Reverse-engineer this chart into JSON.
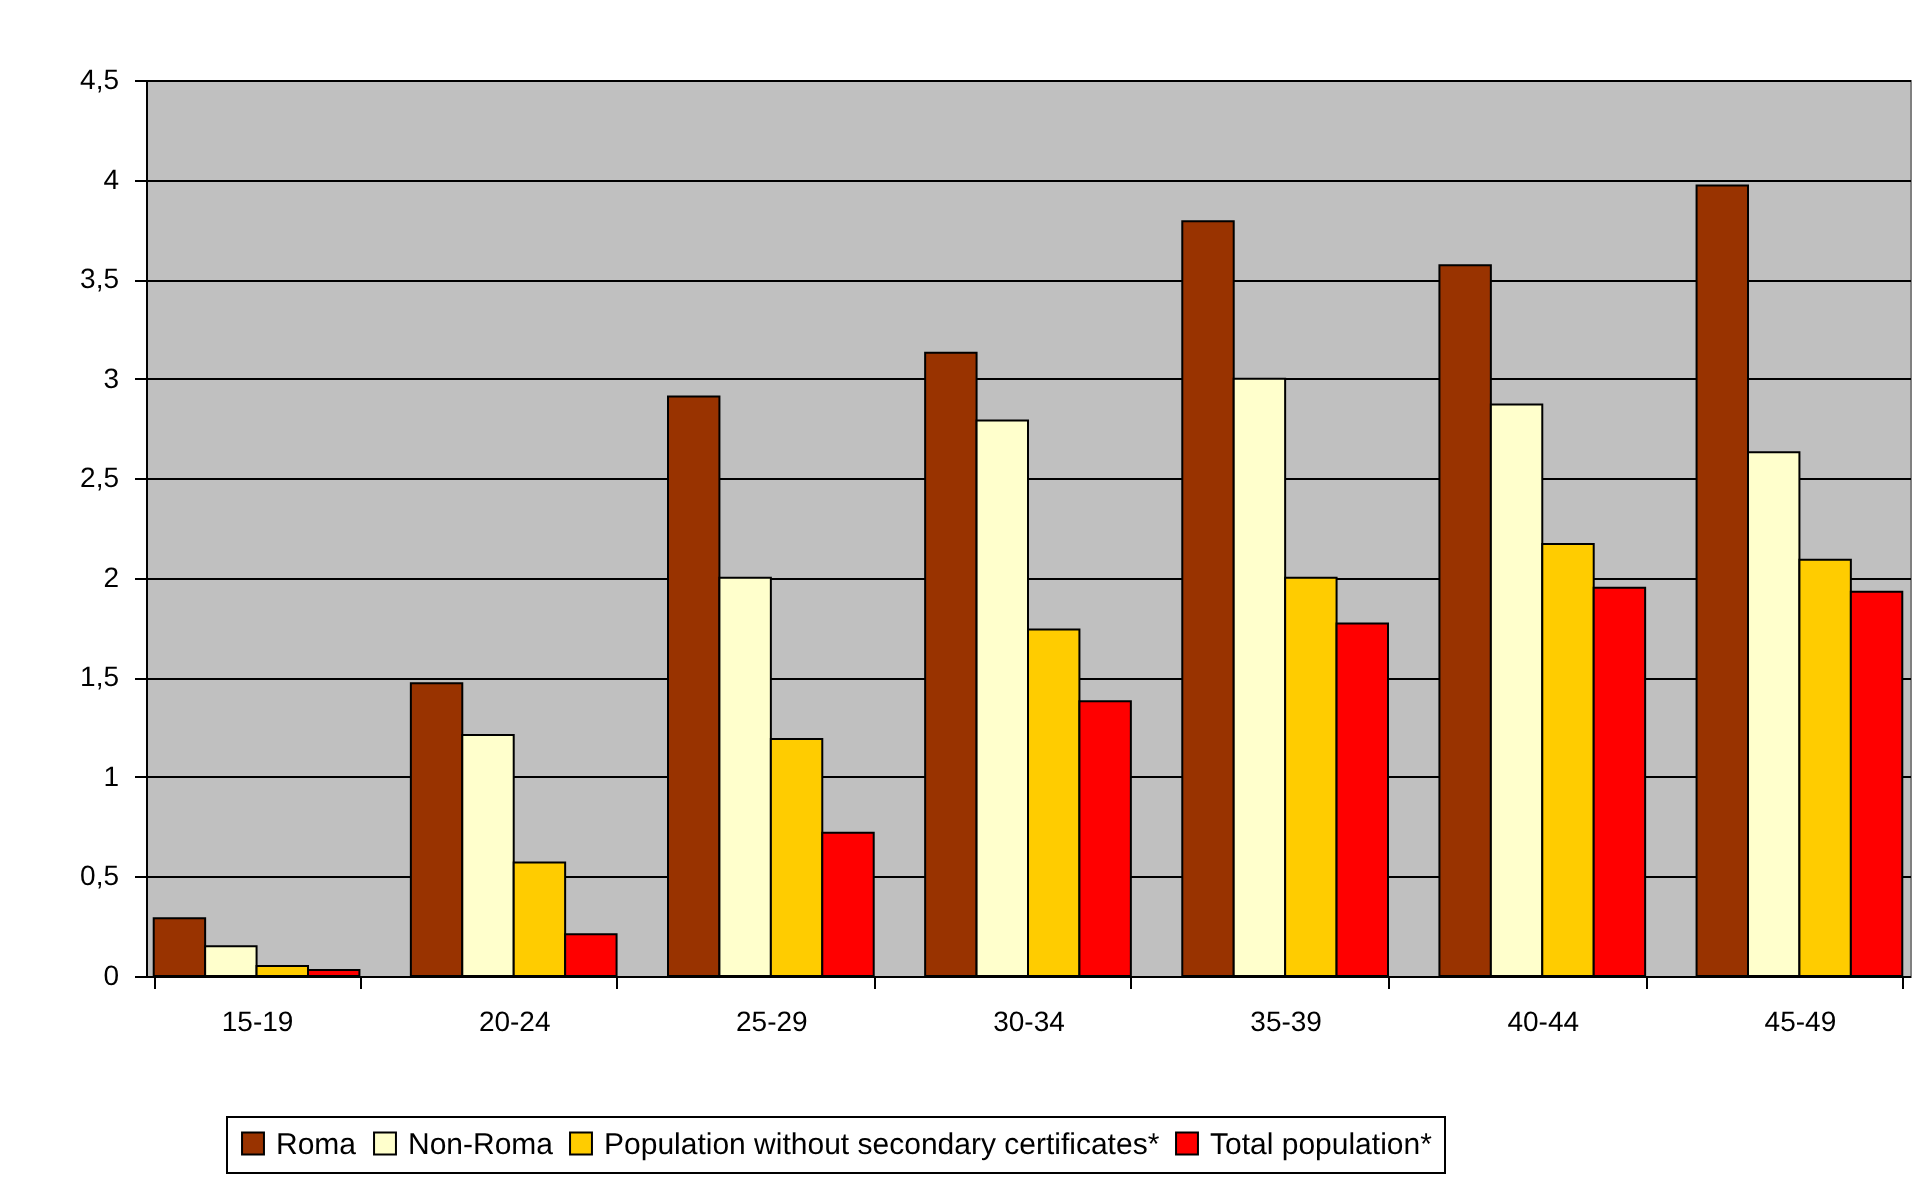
{
  "chart_data": {
    "type": "bar",
    "categories": [
      "15-19",
      "20-24",
      "25-29",
      "30-34",
      "35-39",
      "40-44",
      "45-49"
    ],
    "series": [
      {
        "name": "Roma",
        "color": "#993300",
        "values": [
          0.29,
          1.47,
          2.91,
          3.13,
          3.79,
          3.57,
          3.97
        ]
      },
      {
        "name": "Non-Roma",
        "color": "#ffffcc",
        "values": [
          0.15,
          1.21,
          2.0,
          2.79,
          3.0,
          2.87,
          2.63
        ]
      },
      {
        "name": "Population without secondary certificates*",
        "color": "#ffcc00",
        "values": [
          0.05,
          0.57,
          1.19,
          1.74,
          2.0,
          2.17,
          2.09
        ]
      },
      {
        "name": "Total population*",
        "color": "#ff0000",
        "values": [
          0.03,
          0.21,
          0.72,
          1.38,
          1.77,
          1.95,
          1.93
        ]
      }
    ],
    "ylim": [
      0,
      4.5
    ],
    "yticks": [
      0,
      {
        "value": 0.5,
        "label": "0,5"
      },
      1,
      {
        "value": 1.5,
        "label": "1,5"
      },
      2,
      {
        "value": 2.5,
        "label": "2,5"
      },
      3,
      {
        "value": 3.5,
        "label": "3,5"
      },
      4,
      {
        "value": 4.5,
        "label": "4,5"
      }
    ],
    "grid": "y",
    "legend": "bottom"
  }
}
